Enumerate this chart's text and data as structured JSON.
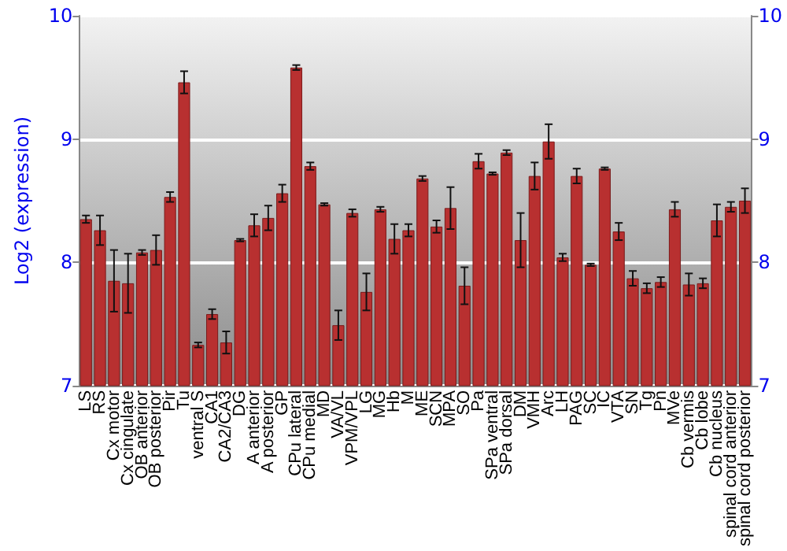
{
  "chart_data": {
    "type": "bar",
    "ylabel": "Log2 (expression)",
    "categories": [
      "LS",
      "RS",
      "Cx motor",
      "Cx cingulate",
      "OB anterior",
      "OB posterior",
      "Pir",
      "Tu",
      "ventral S",
      "CA1",
      "CA2/CA3",
      "DG",
      "A anterior",
      "A posterior",
      "GP",
      "CPu lateral",
      "CPu medial",
      "MD",
      "VA/VL",
      "VPM/VPL",
      "LG",
      "MG",
      "Hb",
      "M",
      "ME",
      "SCN",
      "MPA",
      "SO",
      "Pa",
      "SPa ventral",
      "SPa dorsal",
      "DM",
      "VMH",
      "Arc",
      "LH",
      "PAG",
      "SC",
      "IC",
      "VTA",
      "SN",
      "Tg",
      "Pn",
      "MVe",
      "Cb vermis",
      "Cb lobe",
      "Cb nucleus",
      "spinal cord anterior",
      "spinal cord posterior"
    ],
    "values": [
      8.35,
      8.26,
      7.85,
      7.83,
      8.08,
      8.1,
      8.53,
      9.46,
      7.33,
      7.58,
      7.35,
      8.18,
      8.3,
      8.36,
      8.56,
      9.58,
      8.78,
      8.47,
      7.49,
      8.4,
      7.76,
      8.43,
      8.19,
      8.26,
      8.68,
      8.29,
      8.44,
      7.81,
      8.82,
      8.72,
      8.89,
      8.18,
      8.7,
      8.98,
      8.04,
      8.7,
      7.98,
      8.76,
      8.25,
      7.87,
      7.79,
      7.84,
      8.43,
      7.82,
      7.83,
      8.34,
      8.45,
      8.5
    ],
    "errors": [
      0.03,
      0.12,
      0.25,
      0.24,
      0.02,
      0.12,
      0.04,
      0.09,
      0.02,
      0.04,
      0.09,
      0.01,
      0.09,
      0.1,
      0.07,
      0.02,
      0.03,
      0.01,
      0.12,
      0.03,
      0.15,
      0.02,
      0.12,
      0.05,
      0.02,
      0.05,
      0.17,
      0.15,
      0.06,
      0.01,
      0.02,
      0.22,
      0.11,
      0.14,
      0.03,
      0.06,
      0.01,
      0.01,
      0.07,
      0.06,
      0.04,
      0.04,
      0.06,
      0.09,
      0.04,
      0.13,
      0.04,
      0.1
    ],
    "color": "#b83030",
    "ylim": [
      7,
      10
    ],
    "yticks": [
      7,
      8,
      9,
      10
    ],
    "y2lim": [
      7,
      10
    ],
    "y2ticks": [
      7,
      8,
      9,
      10
    ],
    "grid": "y"
  }
}
